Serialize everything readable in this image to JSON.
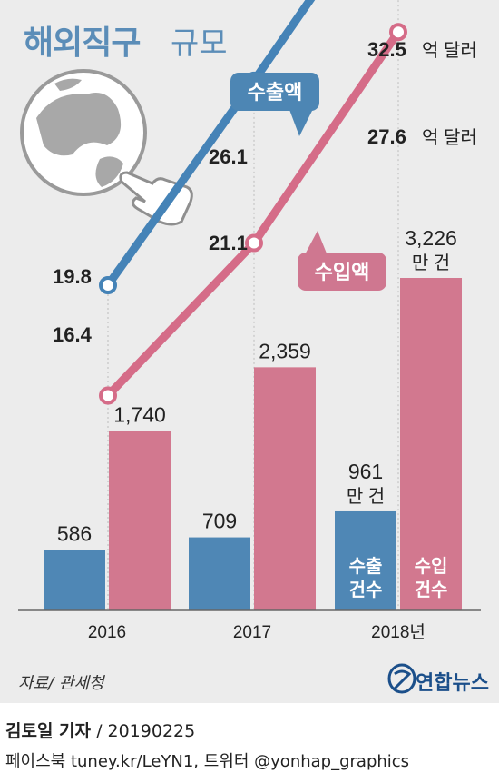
{
  "header": {
    "title": "해외직구",
    "subtitle": "규모"
  },
  "colors": {
    "export": "#4d86b4",
    "import": "#cf7790",
    "bar_export": "#4f87b5",
    "bar_import": "#d2788f",
    "line_export": "#4583b7",
    "line_import": "#d56c88"
  },
  "chart_data": {
    "type": "bar",
    "categories": [
      "2016",
      "2017",
      "2018년"
    ],
    "series": [
      {
        "name": "수출",
        "kind": "bar",
        "values": [
          586,
          709,
          961
        ],
        "labels": [
          "586",
          "709",
          "961"
        ]
      },
      {
        "name": "수입",
        "kind": "bar",
        "values": [
          1740,
          2359,
          3226
        ],
        "labels": [
          "1,740",
          "2,359",
          "3,226"
        ]
      },
      {
        "name": "수출액",
        "kind": "line",
        "values": [
          19.8,
          26.1,
          32.5
        ],
        "labels": [
          "19.8",
          "26.1",
          "32.5"
        ]
      },
      {
        "name": "수입액",
        "kind": "line",
        "values": [
          16.4,
          21.1,
          27.6
        ],
        "labels": [
          "16.4",
          "21.1",
          "27.6"
        ]
      }
    ],
    "bar_unit": "만 건",
    "line_unit": "억 달러",
    "bar_inner_labels": [
      [
        "수출",
        "건수"
      ],
      [
        "수입",
        "건수"
      ]
    ],
    "line_tags": [
      "수출액",
      "수입액"
    ]
  },
  "footer": {
    "source": "자료/ 관세청",
    "logo_text": "연합뉴스",
    "reporter": "김토일 기자",
    "date": "/ 20190225",
    "social": "페이스북 tuney.kr/LeYN1, 트위터 @yonhap_graphics"
  }
}
